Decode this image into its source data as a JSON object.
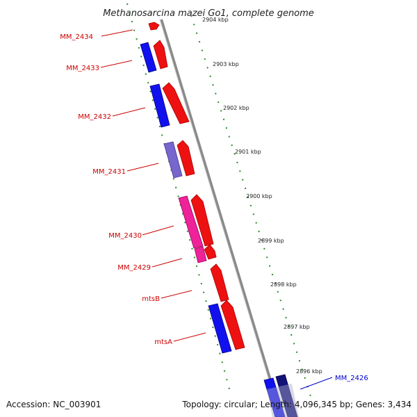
{
  "title": "Methanosarcina mazei Go1, complete genome",
  "footer": {
    "accession": "Accession: NC_003901",
    "summary": "Topology: circular; Length: 4,096,345 bp; Genes: 3,434"
  },
  "colors": {
    "forward_label": "#cc0000",
    "reverse_label": "#0000cc",
    "backbone": "#7a7a7a",
    "tick": "#2a8a2a"
  },
  "kbp_ticks": [
    "2904 kbp",
    "2903 kbp",
    "2902 kbp",
    "2901 kbp",
    "2900 kbp",
    "2899 kbp",
    "2898 kbp",
    "2897 kbp",
    "2896 kbp"
  ],
  "gene_labels": [
    {
      "text": "MM_2434",
      "strand": "forward"
    },
    {
      "text": "MM_2433",
      "strand": "forward"
    },
    {
      "text": "MM_2432",
      "strand": "forward"
    },
    {
      "text": "MM_2431",
      "strand": "forward"
    },
    {
      "text": "MM_2430",
      "strand": "forward"
    },
    {
      "text": "MM_2429",
      "strand": "forward"
    },
    {
      "text": "mtsB",
      "strand": "forward"
    },
    {
      "text": "mtsA",
      "strand": "forward"
    },
    {
      "text": "MM_2426",
      "strand": "reverse"
    }
  ]
}
